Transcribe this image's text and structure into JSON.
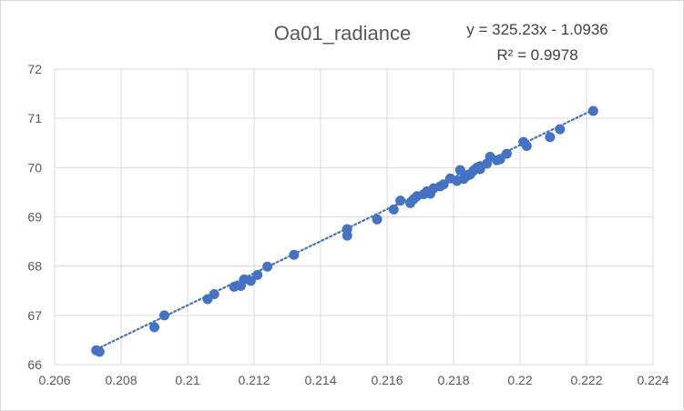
{
  "chart_data": {
    "type": "scatter",
    "title": "Oa01_radiance",
    "xlabel": "",
    "ylabel": "",
    "xlim": [
      0.206,
      0.224
    ],
    "ylim": [
      66,
      72
    ],
    "x_ticks": [
      "0.206",
      "0.208",
      "0.21",
      "0.212",
      "0.214",
      "0.216",
      "0.218",
      "0.22",
      "0.222",
      "0.224"
    ],
    "y_ticks": [
      "66",
      "67",
      "68",
      "69",
      "70",
      "71",
      "72"
    ],
    "grid": true,
    "legend": "none",
    "marker_color": "#4472c4",
    "trendline": {
      "type": "linear",
      "style": "dotted",
      "color": "#4472c4",
      "slope": 325.23,
      "intercept": -1.0936,
      "equation_label": "y = 325.23x - 1.0936",
      "r2_label": "R² = 0.9978"
    },
    "series": [
      {
        "points": [
          [
            0.20725,
            66.29
          ],
          [
            0.20735,
            66.26
          ],
          [
            0.209,
            66.76
          ],
          [
            0.2093,
            67.0
          ],
          [
            0.2106,
            67.33
          ],
          [
            0.2108,
            67.43
          ],
          [
            0.2114,
            67.58
          ],
          [
            0.2116,
            67.6
          ],
          [
            0.2117,
            67.73
          ],
          [
            0.2119,
            67.7
          ],
          [
            0.2121,
            67.82
          ],
          [
            0.2124,
            67.99
          ],
          [
            0.2132,
            68.23
          ],
          [
            0.2148,
            68.62
          ],
          [
            0.2148,
            68.75
          ],
          [
            0.2157,
            68.95
          ],
          [
            0.2162,
            69.15
          ],
          [
            0.2164,
            69.33
          ],
          [
            0.2167,
            69.28
          ],
          [
            0.2168,
            69.36
          ],
          [
            0.2169,
            69.42
          ],
          [
            0.2171,
            69.46
          ],
          [
            0.2172,
            69.52
          ],
          [
            0.2173,
            69.47
          ],
          [
            0.2174,
            69.58
          ],
          [
            0.2176,
            69.62
          ],
          [
            0.2177,
            69.66
          ],
          [
            0.2179,
            69.78
          ],
          [
            0.2181,
            69.73
          ],
          [
            0.2182,
            69.95
          ],
          [
            0.2183,
            69.77
          ],
          [
            0.2184,
            69.83
          ],
          [
            0.2185,
            69.86
          ],
          [
            0.2186,
            69.94
          ],
          [
            0.2187,
            70.0
          ],
          [
            0.2188,
            70.03
          ],
          [
            0.2188,
            69.97
          ],
          [
            0.219,
            70.08
          ],
          [
            0.2191,
            70.22
          ],
          [
            0.2193,
            70.15
          ],
          [
            0.2194,
            70.17
          ],
          [
            0.2196,
            70.28
          ],
          [
            0.2201,
            70.52
          ],
          [
            0.2202,
            70.44
          ],
          [
            0.2209,
            70.62
          ],
          [
            0.2212,
            70.78
          ],
          [
            0.2222,
            71.15
          ]
        ]
      }
    ]
  }
}
